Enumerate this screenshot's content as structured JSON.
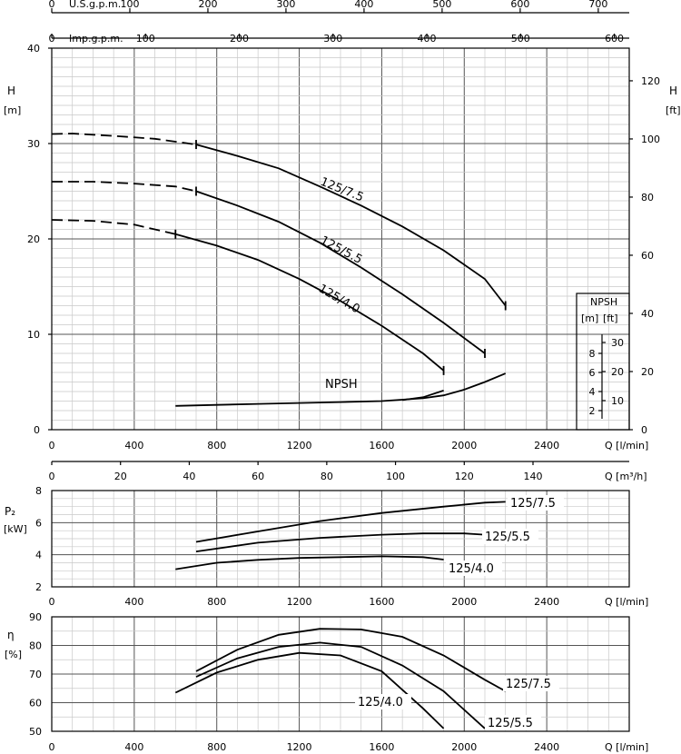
{
  "chart_data": [
    {
      "id": "head",
      "type": "line",
      "ylabel": "H",
      "ylabel_unit": "[m]",
      "y2label": "H",
      "y2label_unit": "[ft]",
      "ylim": [
        0,
        40
      ],
      "yticks": [
        "0",
        "10",
        "20",
        "30",
        "40"
      ],
      "y2ticks": [
        "0",
        "20",
        "40",
        "60",
        "80",
        "100",
        "120"
      ],
      "xlim": [
        0,
        2800
      ],
      "xticks": [
        "0",
        "400",
        "800",
        "1200",
        "1600",
        "2000",
        "2400"
      ],
      "xunit": "Q [l/min]",
      "top_axis_usgpm": {
        "label": "U.S.g.p.m.",
        "ticks": [
          "0",
          "100",
          "200",
          "300",
          "400",
          "500",
          "600",
          "700"
        ]
      },
      "top_axis_impgpm": {
        "label": "Imp.g.p.m.",
        "ticks": [
          "0",
          "100",
          "200",
          "300",
          "400",
          "500",
          "600"
        ]
      },
      "bottom_axis_m3h": {
        "label": "Q [m³/h]",
        "ticks": [
          "0",
          "20",
          "40",
          "60",
          "80",
          "100",
          "120",
          "140"
        ]
      },
      "series": [
        {
          "name": "125/7.5",
          "dashed": [
            [
              0,
              31
            ],
            [
              100,
              31.05
            ],
            [
              300,
              30.8
            ],
            [
              500,
              30.5
            ],
            [
              700,
              29.9
            ]
          ],
          "points": [
            [
              700,
              29.9
            ],
            [
              900,
              28.7
            ],
            [
              1100,
              27.4
            ],
            [
              1300,
              25.5
            ],
            [
              1500,
              23.5
            ],
            [
              1700,
              21.3
            ],
            [
              1900,
              18.8
            ],
            [
              2100,
              15.8
            ],
            [
              2200,
              13
            ]
          ]
        },
        {
          "name": "125/5.5",
          "dashed": [
            [
              0,
              26
            ],
            [
              200,
              26
            ],
            [
              400,
              25.8
            ],
            [
              600,
              25.5
            ],
            [
              700,
              25
            ]
          ],
          "points": [
            [
              700,
              25
            ],
            [
              900,
              23.5
            ],
            [
              1100,
              21.8
            ],
            [
              1300,
              19.6
            ],
            [
              1500,
              17
            ],
            [
              1700,
              14.2
            ],
            [
              1900,
              11.2
            ],
            [
              2100,
              8
            ]
          ]
        },
        {
          "name": "125/4.0",
          "dashed": [
            [
              0,
              22
            ],
            [
              200,
              21.9
            ],
            [
              400,
              21.5
            ],
            [
              600,
              20.5
            ]
          ],
          "points": [
            [
              600,
              20.5
            ],
            [
              800,
              19.3
            ],
            [
              1000,
              17.8
            ],
            [
              1200,
              15.8
            ],
            [
              1400,
              13.5
            ],
            [
              1600,
              10.9
            ],
            [
              1800,
              8
            ],
            [
              1900,
              6.2
            ]
          ]
        }
      ],
      "npsh": {
        "name": "NPSH",
        "unit_m": "[m]",
        "unit_ft": "[ft]",
        "inset_m_ticks": [
          "2",
          "4",
          "6",
          "8"
        ],
        "inset_ft_ticks": [
          "10",
          "20",
          "30"
        ],
        "points": [
          [
            600,
            2.5
          ],
          [
            800,
            2.6
          ],
          [
            1000,
            2.7
          ],
          [
            1200,
            2.8
          ],
          [
            1400,
            2.9
          ],
          [
            1600,
            3
          ],
          [
            1800,
            3.3
          ],
          [
            1900,
            3.6
          ],
          [
            2000,
            4.2
          ],
          [
            2100,
            5
          ],
          [
            2200,
            5.9
          ]
        ],
        "branch": [
          [
            1700,
            3.1
          ],
          [
            1800,
            3.4
          ],
          [
            1900,
            4.1
          ]
        ]
      }
    },
    {
      "id": "power",
      "type": "line",
      "ylabel": "P₂",
      "ylabel_unit": "[kW]",
      "ylim": [
        2,
        8
      ],
      "yticks": [
        "2",
        "4",
        "6",
        "8"
      ],
      "xticks": [
        "0",
        "400",
        "800",
        "1200",
        "1600",
        "2000",
        "2400"
      ],
      "xunit": "Q [l/min]",
      "series": [
        {
          "name": "125/7.5",
          "points": [
            [
              700,
              4.8
            ],
            [
              1000,
              5.45
            ],
            [
              1300,
              6.1
            ],
            [
              1600,
              6.6
            ],
            [
              1900,
              7
            ],
            [
              2100,
              7.25
            ],
            [
              2200,
              7.3
            ]
          ]
        },
        {
          "name": "125/5.5",
          "points": [
            [
              700,
              4.2
            ],
            [
              1000,
              4.75
            ],
            [
              1300,
              5.05
            ],
            [
              1600,
              5.25
            ],
            [
              1800,
              5.33
            ],
            [
              2000,
              5.33
            ],
            [
              2100,
              5.25
            ]
          ]
        },
        {
          "name": "125/4.0",
          "points": [
            [
              600,
              3.1
            ],
            [
              800,
              3.5
            ],
            [
              1000,
              3.68
            ],
            [
              1200,
              3.8
            ],
            [
              1400,
              3.85
            ],
            [
              1600,
              3.9
            ],
            [
              1800,
              3.85
            ],
            [
              1900,
              3.7
            ]
          ]
        }
      ]
    },
    {
      "id": "efficiency",
      "type": "line",
      "ylabel": "η",
      "ylabel_unit": "[%]",
      "ylim": [
        50,
        90
      ],
      "yticks": [
        "50",
        "60",
        "70",
        "80",
        "90"
      ],
      "xticks": [
        "0",
        "400",
        "800",
        "1200",
        "1600",
        "2000",
        "2400"
      ],
      "xunit": "Q [l/min]",
      "series": [
        {
          "name": "125/7.5",
          "points": [
            [
              700,
              71
            ],
            [
              900,
              78.5
            ],
            [
              1100,
              83.7
            ],
            [
              1300,
              85.8
            ],
            [
              1500,
              85.6
            ],
            [
              1700,
              83
            ],
            [
              1900,
              76.5
            ],
            [
              2100,
              68
            ],
            [
              2200,
              64
            ]
          ]
        },
        {
          "name": "125/5.5",
          "points": [
            [
              700,
              69
            ],
            [
              900,
              75.5
            ],
            [
              1100,
              79.5
            ],
            [
              1300,
              81
            ],
            [
              1500,
              79.5
            ],
            [
              1700,
              73
            ],
            [
              1900,
              64
            ],
            [
              2100,
              51
            ]
          ]
        },
        {
          "name": "125/4.0",
          "points": [
            [
              600,
              63.5
            ],
            [
              800,
              70.5
            ],
            [
              1000,
              75
            ],
            [
              1200,
              77.4
            ],
            [
              1400,
              76.5
            ],
            [
              1600,
              71
            ],
            [
              1800,
              58
            ],
            [
              1900,
              51
            ]
          ]
        }
      ]
    }
  ]
}
